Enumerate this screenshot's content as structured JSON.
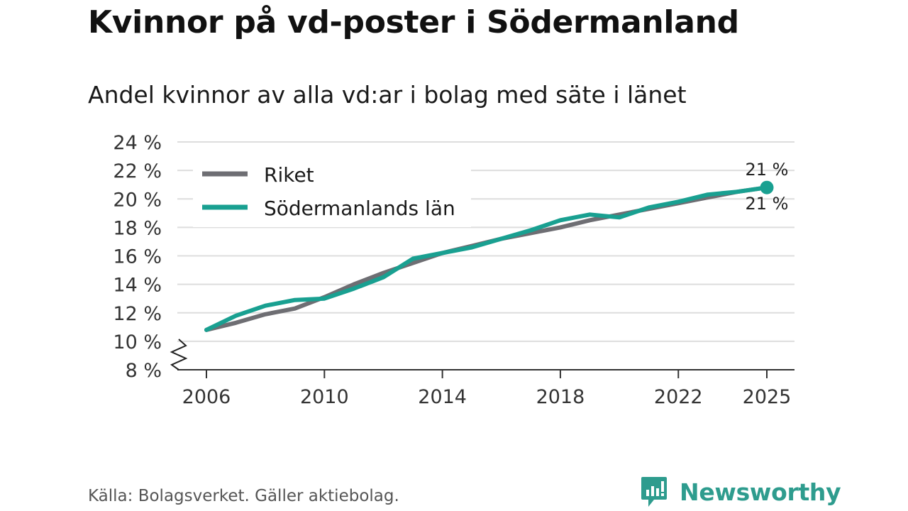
{
  "title": "Kvinnor på vd-poster i Södermanland",
  "subtitle": "Andel kvinnor av alla vd:ar i bolag med säte i länet",
  "source": "Källa: Bolagsverket. Gäller aktiebolag.",
  "brand": "Newsworthy",
  "colors": {
    "riket": "#6e6e73",
    "lan": "#19a091",
    "grid": "#dddddd",
    "axis": "#333333",
    "brand": "#2e9c8e"
  },
  "chart_data": {
    "type": "line",
    "x": [
      2006,
      2007,
      2008,
      2009,
      2010,
      2011,
      2012,
      2013,
      2014,
      2015,
      2016,
      2017,
      2018,
      2019,
      2020,
      2021,
      2022,
      2023,
      2024,
      2025
    ],
    "series": [
      {
        "name": "Riket",
        "values": [
          10.8,
          11.3,
          11.9,
          12.3,
          13.1,
          14.0,
          14.8,
          15.5,
          16.2,
          16.7,
          17.2,
          17.6,
          18.0,
          18.5,
          18.9,
          19.3,
          19.7,
          20.1,
          20.5,
          20.8
        ]
      },
      {
        "name": "Södermanlands län",
        "values": [
          10.8,
          11.8,
          12.5,
          12.9,
          13.0,
          13.7,
          14.5,
          15.8,
          16.2,
          16.6,
          17.2,
          17.8,
          18.5,
          18.9,
          18.7,
          19.4,
          19.8,
          20.3,
          20.5,
          20.8
        ]
      }
    ],
    "end_labels": [
      "21 %",
      "21 %"
    ],
    "yticks": [
      8,
      10,
      12,
      14,
      16,
      18,
      20,
      22,
      24
    ],
    "ytick_labels": [
      "8 %",
      "10 %",
      "12 %",
      "14 %",
      "16 %",
      "18 %",
      "20 %",
      "22 %",
      "24 %"
    ],
    "xticks": [
      2006,
      2010,
      2014,
      2018,
      2022,
      2025
    ],
    "xtick_labels": [
      "2006",
      "2010",
      "2014",
      "2018",
      "2022",
      "2025"
    ],
    "ylim": [
      8,
      24
    ],
    "xlim": [
      2006,
      2025
    ],
    "legend_position": "top-left",
    "axis_break": true,
    "xlabel": "",
    "ylabel": ""
  }
}
